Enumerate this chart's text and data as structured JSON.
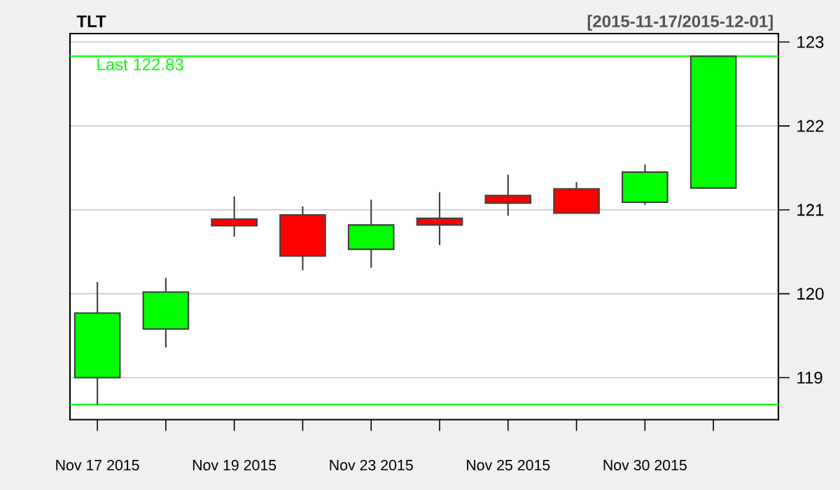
{
  "chart_data": {
    "type": "candlestick",
    "title": "TLT",
    "subtitle": "[2015-11-17/2015-12-01]",
    "categories": [
      "Nov 17 2015",
      null,
      "Nov 19 2015",
      null,
      "Nov 23 2015",
      null,
      "Nov 25 2015",
      null,
      "Nov 30 2015",
      null
    ],
    "ohlc": [
      [
        119.0,
        120.14,
        118.68,
        119.77
      ],
      [
        119.58,
        120.19,
        119.36,
        120.02
      ],
      [
        120.89,
        121.16,
        120.68,
        120.81
      ],
      [
        120.94,
        121.04,
        120.28,
        120.45
      ],
      [
        120.53,
        121.12,
        120.31,
        120.82
      ],
      [
        120.9,
        121.21,
        120.58,
        120.82
      ],
      [
        121.17,
        121.42,
        120.93,
        121.08
      ],
      [
        121.25,
        121.33,
        120.96,
        120.96
      ],
      [
        121.09,
        121.54,
        121.06,
        121.45
      ],
      [
        121.26,
        122.84,
        121.26,
        122.83
      ]
    ],
    "colors": [
      "#00ff00",
      "#00ff00",
      "#ff0000",
      "#ff0000",
      "#00ff00",
      "#ff0000",
      "#ff0000",
      "#ff0000",
      "#00ff00",
      "#00ff00"
    ],
    "ylim": [
      118.5,
      123.1
    ],
    "yticks": [
      119,
      120,
      121,
      122,
      123
    ],
    "grid": "y",
    "ref_lines": [
      {
        "axis": "y",
        "value": 122.83,
        "label": "Last 122.83",
        "color": "#00ff00"
      },
      {
        "axis": "y",
        "value": 118.68,
        "color": "#00ff00"
      }
    ]
  }
}
